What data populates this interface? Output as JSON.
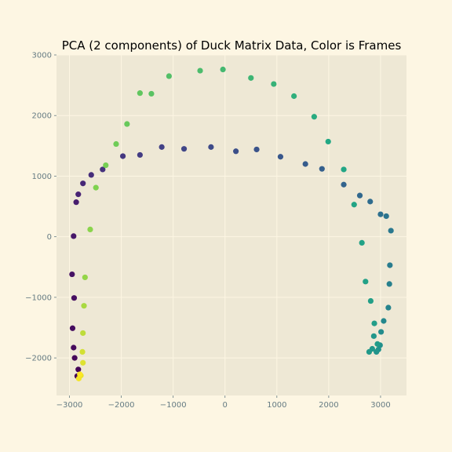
{
  "chart_data": {
    "type": "scatter",
    "title": "PCA (2 components) of Duck Matrix Data, Color is Frames",
    "xlabel": "",
    "ylabel": "",
    "xlim": [
      -3250,
      3500
    ],
    "ylim": [
      -2620,
      3000
    ],
    "x_ticks": [
      -3000,
      -2000,
      -1000,
      0,
      1000,
      2000,
      3000
    ],
    "y_ticks": [
      -2000,
      -1000,
      0,
      1000,
      2000,
      3000
    ],
    "grid": true,
    "colormap": "viridis",
    "colors": {
      "page_background": "#fdf6e3",
      "plot_background": "#eee8d5",
      "grid": "#fdf6e3",
      "tick_label": "#657b83"
    },
    "points": [
      {
        "x": -2850,
        "y": -2300,
        "c": 0.0
      },
      {
        "x": -2830,
        "y": -2190,
        "c": 0.01
      },
      {
        "x": -2900,
        "y": -2000,
        "c": 0.02
      },
      {
        "x": -2920,
        "y": -1830,
        "c": 0.03
      },
      {
        "x": -2940,
        "y": -1510,
        "c": 0.04
      },
      {
        "x": -2910,
        "y": -1010,
        "c": 0.05
      },
      {
        "x": -2950,
        "y": -620,
        "c": 0.06
      },
      {
        "x": -2920,
        "y": 10,
        "c": 0.08
      },
      {
        "x": -2870,
        "y": 570,
        "c": 0.1
      },
      {
        "x": -2830,
        "y": 700,
        "c": 0.12
      },
      {
        "x": -2740,
        "y": 880,
        "c": 0.14
      },
      {
        "x": -2580,
        "y": 1020,
        "c": 0.16
      },
      {
        "x": -2360,
        "y": 1110,
        "c": 0.18
      },
      {
        "x": -1970,
        "y": 1330,
        "c": 0.2
      },
      {
        "x": -1640,
        "y": 1350,
        "c": 0.22
      },
      {
        "x": -1220,
        "y": 1480,
        "c": 0.24
      },
      {
        "x": -790,
        "y": 1450,
        "c": 0.26
      },
      {
        "x": -270,
        "y": 1480,
        "c": 0.28
      },
      {
        "x": 210,
        "y": 1410,
        "c": 0.3
      },
      {
        "x": 610,
        "y": 1440,
        "c": 0.32
      },
      {
        "x": 1070,
        "y": 1320,
        "c": 0.34
      },
      {
        "x": 1550,
        "y": 1200,
        "c": 0.36
      },
      {
        "x": 1870,
        "y": 1120,
        "c": 0.38
      },
      {
        "x": 2290,
        "y": 860,
        "c": 0.4
      },
      {
        "x": 2600,
        "y": 680,
        "c": 0.42
      },
      {
        "x": 2800,
        "y": 580,
        "c": 0.44
      },
      {
        "x": 3000,
        "y": 370,
        "c": 0.46
      },
      {
        "x": 3110,
        "y": 340,
        "c": 0.48
      },
      {
        "x": 3200,
        "y": 100,
        "c": 0.5
      },
      {
        "x": 3180,
        "y": -470,
        "c": 0.52
      },
      {
        "x": 3170,
        "y": -780,
        "c": 0.54
      },
      {
        "x": 3150,
        "y": -1170,
        "c": 0.56
      },
      {
        "x": 3060,
        "y": -1390,
        "c": 0.58
      },
      {
        "x": 3010,
        "y": -1570,
        "c": 0.6
      },
      {
        "x": 2990,
        "y": -1790,
        "c": 0.62
      },
      {
        "x": 2960,
        "y": -1860,
        "c": 0.63
      },
      {
        "x": 2920,
        "y": -1900,
        "c": 0.64
      },
      {
        "x": 2870,
        "y": -1640,
        "c": 0.65
      },
      {
        "x": 2840,
        "y": -1850,
        "c": 0.66
      },
      {
        "x": 2780,
        "y": -1900,
        "c": 0.67
      },
      {
        "x": 2940,
        "y": -1770,
        "c": 0.68
      },
      {
        "x": 2880,
        "y": -1430,
        "c": 0.69
      },
      {
        "x": 2810,
        "y": -1060,
        "c": 0.7
      },
      {
        "x": 2710,
        "y": -740,
        "c": 0.71
      },
      {
        "x": 2640,
        "y": -100,
        "c": 0.72
      },
      {
        "x": 2490,
        "y": 530,
        "c": 0.73
      },
      {
        "x": 2290,
        "y": 1110,
        "c": 0.74
      },
      {
        "x": 1990,
        "y": 1570,
        "c": 0.75
      },
      {
        "x": 1720,
        "y": 1980,
        "c": 0.76
      },
      {
        "x": 1330,
        "y": 2320,
        "c": 0.77
      },
      {
        "x": 940,
        "y": 2520,
        "c": 0.78
      },
      {
        "x": 500,
        "y": 2620,
        "c": 0.79
      },
      {
        "x": -40,
        "y": 2760,
        "c": 0.8
      },
      {
        "x": -480,
        "y": 2740,
        "c": 0.81
      },
      {
        "x": -1080,
        "y": 2650,
        "c": 0.82
      },
      {
        "x": -1420,
        "y": 2360,
        "c": 0.83
      },
      {
        "x": -1640,
        "y": 2370,
        "c": 0.84
      },
      {
        "x": -1890,
        "y": 1860,
        "c": 0.85
      },
      {
        "x": -2100,
        "y": 1530,
        "c": 0.86
      },
      {
        "x": -2300,
        "y": 1180,
        "c": 0.87
      },
      {
        "x": -2490,
        "y": 810,
        "c": 0.88
      },
      {
        "x": -2600,
        "y": 120,
        "c": 0.89
      },
      {
        "x": -2700,
        "y": -670,
        "c": 0.9
      },
      {
        "x": -2720,
        "y": -1140,
        "c": 0.92
      },
      {
        "x": -2740,
        "y": -1590,
        "c": 0.94
      },
      {
        "x": -2750,
        "y": -1900,
        "c": 0.96
      },
      {
        "x": -2740,
        "y": -2080,
        "c": 0.97
      },
      {
        "x": -2780,
        "y": -2290,
        "c": 0.98
      },
      {
        "x": -2820,
        "y": -2340,
        "c": 0.99
      },
      {
        "x": -2800,
        "y": -2270,
        "c": 1.0
      }
    ]
  }
}
